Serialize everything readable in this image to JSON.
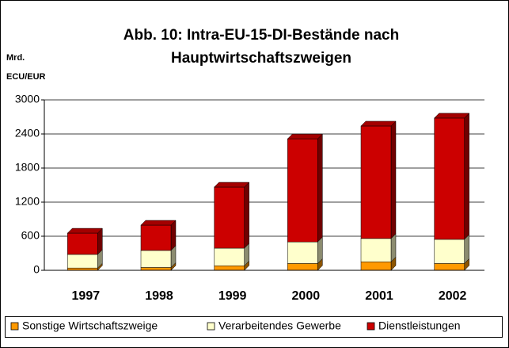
{
  "chart_data": {
    "type": "stacked_bar",
    "title": [
      "Abb. 10: Intra-EU-15-DI-Bestände nach",
      "Hauptwirtschaftszweigen"
    ],
    "y_label": [
      "Mrd.",
      "ECU/EUR"
    ],
    "categories": [
      "1997",
      "1998",
      "1999",
      "2000",
      "2001",
      "2002"
    ],
    "series": [
      {
        "name": "Sonstige Wirtschaftszweige",
        "color": "#ff9900",
        "values": [
          40,
          50,
          80,
          120,
          150,
          120
        ]
      },
      {
        "name": "Verarbeitendes Gewerbe",
        "color": "#ffffcc",
        "values": [
          240,
          300,
          310,
          380,
          410,
          425
        ]
      },
      {
        "name": "Dienstleistungen",
        "color": "#cc0000",
        "values": [
          375,
          445,
          1075,
          1815,
          1980,
          2135
        ]
      }
    ],
    "ylim": [
      0,
      3000
    ],
    "yticks": [
      0,
      600,
      1200,
      1800,
      2400,
      3000
    ],
    "grid": true,
    "legend": "bottom"
  }
}
